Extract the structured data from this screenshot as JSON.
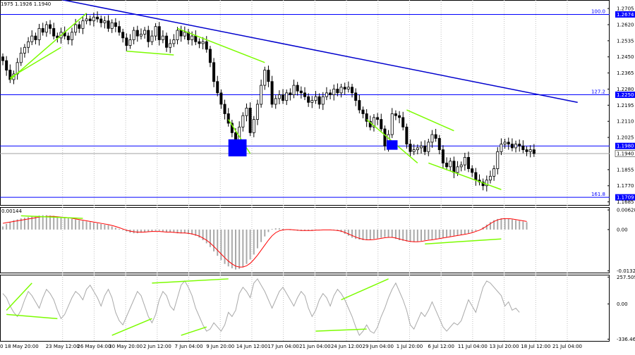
{
  "header": {
    "ohlc_text": "1975 1.1926 1.1940"
  },
  "colors": {
    "background": "#ffffff",
    "bull_candle": "#000000",
    "bear_candle": "#000000",
    "trendline": "#0000cd",
    "level_line": "#0000ff",
    "divergence": "#7cfc00",
    "macd_hist": "#a9a9a9",
    "macd_signal": "#ff0000",
    "cci_line": "#a9a9a9",
    "marker_box": "#0000ff",
    "grid": "#c0c0c0",
    "label_box": "#0000ff"
  },
  "chart_data": [
    {
      "type": "candlestick",
      "panel": "price",
      "ylim": [
        1.1665,
        1.275
      ],
      "yticks": [
        "1.2705",
        "1.2620",
        "1.2535",
        "1.2450",
        "1.2365",
        "1.2280",
        "1.2195",
        "1.2110",
        "1.2025",
        "1.1855",
        "1.1770",
        "1.1685"
      ],
      "levels": [
        {
          "price": 1.2674,
          "tag": "1.2674",
          "fib": "100.0"
        },
        {
          "price": 1.225,
          "tag": "1.2250",
          "fib": "127.2"
        },
        {
          "price": 1.198,
          "tag": "1.1980",
          "fib": ""
        },
        {
          "price": 1.1709,
          "tag": "1.1709",
          "fib": "161.8"
        }
      ],
      "current_price": {
        "price": 1.194,
        "tag": "1.1940"
      },
      "trendline": {
        "from": [
          14,
          1.276
        ],
        "to": [
          158,
          1.221
        ]
      },
      "divergence_lines": [
        {
          "from": [
            2,
            1.233
          ],
          "to": [
            23,
            1.268
          ]
        },
        {
          "from": [
            2,
            1.234
          ],
          "to": [
            16,
            1.25
          ]
        },
        {
          "from": [
            34,
            1.248
          ],
          "to": [
            47,
            1.246
          ]
        },
        {
          "from": [
            48,
            1.26
          ],
          "to": [
            72,
            1.242
          ]
        },
        {
          "from": [
            62,
            1.212
          ],
          "to": [
            68,
            1.194
          ]
        },
        {
          "from": [
            100,
            1.212
          ],
          "to": [
            114,
            1.189
          ]
        },
        {
          "from": [
            111,
            1.217
          ],
          "to": [
            124,
            1.206
          ]
        },
        {
          "from": [
            117,
            1.189
          ],
          "to": [
            137,
            1.175
          ]
        }
      ],
      "marker_boxes": [
        {
          "x_from": 62,
          "x_to": 67,
          "y_from": 1.1925,
          "y_to": 1.2015
        },
        {
          "x_from": 105.5,
          "x_to": 108.5,
          "y_from": 1.196,
          "y_to": 1.201
        }
      ],
      "close": [
        1.243,
        1.238,
        1.233,
        1.236,
        1.242,
        1.247,
        1.25,
        1.253,
        1.256,
        1.254,
        1.26,
        1.258,
        1.262,
        1.26,
        1.256,
        1.255,
        1.258,
        1.256,
        1.254,
        1.258,
        1.262,
        1.26,
        1.264,
        1.265,
        1.264,
        1.266,
        1.265,
        1.263,
        1.264,
        1.26,
        1.263,
        1.261,
        1.258,
        1.255,
        1.251,
        1.254,
        1.259,
        1.256,
        1.257,
        1.259,
        1.253,
        1.256,
        1.261,
        1.254,
        1.256,
        1.25,
        1.252,
        1.254,
        1.259,
        1.256,
        1.258,
        1.254,
        1.256,
        1.253,
        1.252,
        1.253,
        1.249,
        1.242,
        1.232,
        1.226,
        1.22,
        1.215,
        1.21,
        1.205,
        1.196,
        1.208,
        1.214,
        1.218,
        1.205,
        1.212,
        1.22,
        1.23,
        1.238,
        1.232,
        1.22,
        1.223,
        1.225,
        1.222,
        1.226,
        1.225,
        1.23,
        1.227,
        1.226,
        1.224,
        1.221,
        1.222,
        1.224,
        1.22,
        1.224,
        1.226,
        1.225,
        1.228,
        1.226,
        1.229,
        1.228,
        1.229,
        1.226,
        1.222,
        1.217,
        1.215,
        1.211,
        1.208,
        1.213,
        1.212,
        1.207,
        1.198,
        1.204,
        1.215,
        1.214,
        1.213,
        1.208,
        1.199,
        1.195,
        1.196,
        1.197,
        1.198,
        1.195,
        1.2,
        1.204,
        1.202,
        1.196,
        1.189,
        1.187,
        1.19,
        1.184,
        1.187,
        1.188,
        1.192,
        1.186,
        1.184,
        1.18,
        1.179,
        1.177,
        1.18,
        1.182,
        1.186,
        1.195,
        1.199,
        1.2,
        1.199,
        1.197,
        1.199,
        1.198,
        1.196,
        1.195,
        1.196,
        1.194
      ]
    },
    {
      "type": "bar",
      "panel": "macd",
      "ylim": [
        -0.014,
        0.0072
      ],
      "label_top_left": "0.00144",
      "yticks": [
        "0.00628",
        "0.00",
        "-0.01323"
      ],
      "signal_values_note": "signal line drawn from series.signal",
      "series": [
        {
          "kind": "histogram",
          "values": [
            0.001,
            0.0018,
            0.0025,
            0.003,
            0.0033,
            0.0036,
            0.0038,
            0.004,
            0.0042,
            0.0044,
            0.0045,
            0.0046,
            0.0046,
            0.0045,
            0.0044,
            0.0042,
            0.004,
            0.0038,
            0.0036,
            0.0034,
            0.0032,
            0.003,
            0.0028,
            0.0026,
            0.0024,
            0.0022,
            0.002,
            0.0018,
            0.0016,
            0.0014,
            0.001,
            0.0006,
            0.0002,
            -0.0002,
            -0.0006,
            -0.001,
            -0.0012,
            -0.0012,
            -0.001,
            -0.0008,
            -0.0008,
            -0.0006,
            -0.0004,
            -0.0004,
            -0.0006,
            -0.0008,
            -0.0008,
            -0.001,
            -0.0012,
            -0.0012,
            -0.0012,
            -0.0014,
            -0.0016,
            -0.002,
            -0.0026,
            -0.0034,
            -0.0044,
            -0.0056,
            -0.007,
            -0.0084,
            -0.0098,
            -0.011,
            -0.0118,
            -0.0124,
            -0.0128,
            -0.0126,
            -0.012,
            -0.011,
            -0.0096,
            -0.008,
            -0.006,
            -0.004,
            -0.0022,
            -0.0008,
            0.0002,
            0.0004,
            0.0004,
            0.0002,
            0.0,
            -0.0002,
            -0.0002,
            -0.0004,
            -0.0004,
            -0.0004,
            -0.0004,
            -0.0003,
            -0.0002,
            -0.0001,
            0.0,
            0.0,
            -0.0001,
            -0.0002,
            -0.0004,
            -0.0008,
            -0.0014,
            -0.002,
            -0.0026,
            -0.003,
            -0.0032,
            -0.0034,
            -0.0034,
            -0.0032,
            -0.003,
            -0.0028,
            -0.0026,
            -0.0024,
            -0.0024,
            -0.0026,
            -0.003,
            -0.0034,
            -0.0036,
            -0.0038,
            -0.004,
            -0.004,
            -0.0038,
            -0.0036,
            -0.0034,
            -0.0032,
            -0.0032,
            -0.003,
            -0.0028,
            -0.0026,
            -0.0024,
            -0.0022,
            -0.002,
            -0.0018,
            -0.0016,
            -0.0014,
            -0.0012,
            -0.0008,
            -0.0004,
            0.0,
            0.0008,
            0.0016,
            0.0024,
            0.003,
            0.0034,
            0.0036,
            0.0036,
            0.0034,
            0.0032,
            0.003,
            0.0028,
            0.0026,
            0.0024
          ]
        },
        {
          "kind": "signal",
          "values": [
            0.002,
            0.0022,
            0.0024,
            0.0026,
            0.0028,
            0.003,
            0.0032,
            0.0034,
            0.0036,
            0.0038,
            0.004,
            0.0041,
            0.0042,
            0.0042,
            0.0042,
            0.0041,
            0.004,
            0.0039,
            0.0038,
            0.0036,
            0.0034,
            0.0032,
            0.003,
            0.0028,
            0.0026,
            0.0024,
            0.0022,
            0.002,
            0.0018,
            0.0016,
            0.0013,
            0.001,
            0.0006,
            0.0002,
            -0.0002,
            -0.0005,
            -0.0007,
            -0.0008,
            -0.0008,
            -0.0008,
            -0.0007,
            -0.0006,
            -0.0006,
            -0.0006,
            -0.0007,
            -0.0008,
            -0.0008,
            -0.0009,
            -0.001,
            -0.0011,
            -0.0011,
            -0.0012,
            -0.0014,
            -0.0017,
            -0.0021,
            -0.0027,
            -0.0034,
            -0.0043,
            -0.0054,
            -0.0066,
            -0.0078,
            -0.009,
            -0.0101,
            -0.011,
            -0.0117,
            -0.012,
            -0.012,
            -0.0116,
            -0.0108,
            -0.0096,
            -0.0082,
            -0.0066,
            -0.005,
            -0.0034,
            -0.002,
            -0.001,
            -0.0004,
            -0.0001,
            0.0,
            0.0,
            -0.0001,
            -0.0002,
            -0.0003,
            -0.0003,
            -0.0003,
            -0.0003,
            -0.0002,
            -0.0002,
            -0.0001,
            -0.0001,
            -0.0001,
            -0.0002,
            -0.0003,
            -0.0005,
            -0.0009,
            -0.0014,
            -0.0019,
            -0.0024,
            -0.0028,
            -0.0031,
            -0.0033,
            -0.0033,
            -0.0032,
            -0.003,
            -0.0028,
            -0.0026,
            -0.0025,
            -0.0025,
            -0.0027,
            -0.003,
            -0.0033,
            -0.0036,
            -0.0038,
            -0.0039,
            -0.0039,
            -0.0038,
            -0.0036,
            -0.0034,
            -0.0033,
            -0.0031,
            -0.0029,
            -0.0027,
            -0.0025,
            -0.0023,
            -0.0021,
            -0.0019,
            -0.0017,
            -0.0015,
            -0.0013,
            -0.001,
            -0.0006,
            -0.0002,
            0.0004,
            0.0011,
            0.0019,
            0.0026,
            0.0031,
            0.0034,
            0.0035,
            0.0035,
            0.0034,
            0.0032,
            0.003,
            0.0028,
            0.0026
          ]
        }
      ],
      "divergence_lines": [
        {
          "from": [
            5,
            0.0044
          ],
          "to": [
            22,
            0.0036
          ]
        },
        {
          "from": [
            116,
            -0.0046
          ],
          "to": [
            137,
            -0.003
          ]
        }
      ]
    },
    {
      "type": "line",
      "panel": "cci",
      "ylim": [
        -360,
        280
      ],
      "yticks": [
        "257.5097",
        "0.00",
        "-336.468"
      ],
      "series": [
        {
          "kind": "cci",
          "values": [
            100,
            60,
            -20,
            -80,
            -120,
            -60,
            40,
            120,
            80,
            20,
            -40,
            60,
            140,
            100,
            40,
            -60,
            -140,
            -100,
            -20,
            60,
            120,
            90,
            40,
            140,
            180,
            120,
            60,
            -20,
            80,
            140,
            60,
            -80,
            -160,
            -200,
            -120,
            -40,
            40,
            120,
            80,
            -20,
            -120,
            -180,
            -100,
            40,
            120,
            80,
            -20,
            -60,
            60,
            180,
            220,
            160,
            80,
            -40,
            -120,
            -200,
            -260,
            -240,
            -180,
            -220,
            -260,
            -200,
            -80,
            -120,
            -60,
            100,
            160,
            120,
            60,
            200,
            240,
            180,
            120,
            40,
            -40,
            40,
            120,
            160,
            100,
            40,
            -20,
            60,
            120,
            80,
            -40,
            -120,
            -60,
            40,
            100,
            60,
            -20,
            80,
            140,
            100,
            40,
            -40,
            -120,
            -220,
            -300,
            -260,
            -200,
            -260,
            -280,
            -220,
            -120,
            -40,
            60,
            140,
            200,
            120,
            40,
            -60,
            -200,
            -240,
            -160,
            -80,
            -120,
            -60,
            20,
            -60,
            -140,
            -220,
            -260,
            -220,
            -180,
            -200,
            -160,
            -60,
            40,
            -20,
            -80,
            40,
            160,
            220,
            200,
            160,
            120,
            80,
            -20,
            20,
            -60,
            -40,
            -80
          ]
        }
      ],
      "divergence_lines": [
        {
          "from": [
            1,
            -60
          ],
          "to": [
            8,
            200
          ]
        },
        {
          "from": [
            1,
            -100
          ],
          "to": [
            15,
            -140
          ]
        },
        {
          "from": [
            30,
            -300
          ],
          "to": [
            41,
            -140
          ]
        },
        {
          "from": [
            41,
            200
          ],
          "to": [
            62,
            240
          ]
        },
        {
          "from": [
            49,
            -300
          ],
          "to": [
            56,
            -220
          ]
        },
        {
          "from": [
            86,
            -260
          ],
          "to": [
            100,
            -240
          ]
        },
        {
          "from": [
            93,
            40
          ],
          "to": [
            106,
            240
          ]
        }
      ]
    }
  ],
  "x_axis": {
    "tick_labels": [
      "0 18 May 20:00",
      "23 May 12:00",
      "26 May 04:00",
      "30 May 20:00",
      "2 Jun 12:00",
      "7 Jun 04:00",
      "9 Jun 20:00",
      "14 Jun 12:00",
      "17 Jun 04:00",
      "21 Jun 04:00",
      "24 Jun 12:00",
      "29 Jun 04:00",
      "1 Jul 20:00",
      "6 Jul 12:00",
      "11 Jul 04:00",
      "13 Jul 20:00",
      "18 Jul 12:00",
      "21 Jul 04:00"
    ]
  }
}
